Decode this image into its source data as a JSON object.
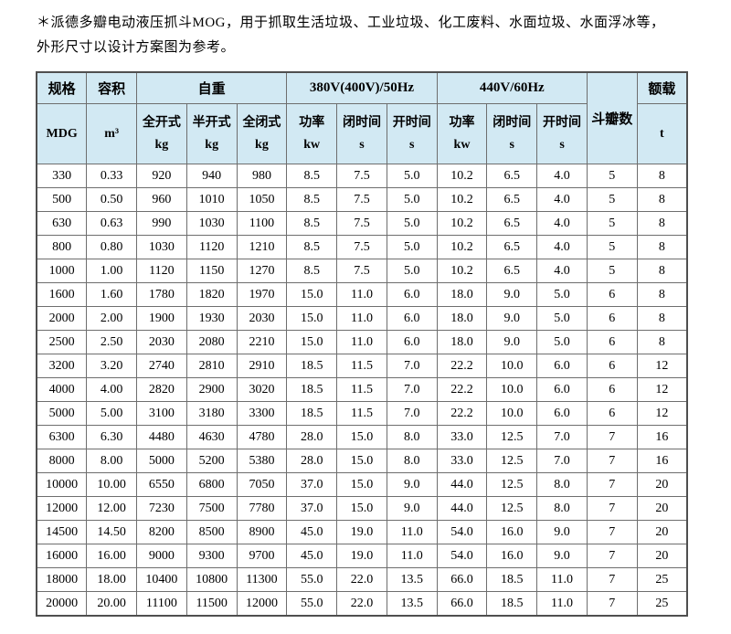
{
  "intro": {
    "line1": "＊派德多瓣电动液压抓斗MOG，用于抓取生活垃圾、工业垃圾、化工废料、水面垃圾、水面浮冰等，",
    "line2": "外形尺寸以设计方案图为参考。"
  },
  "colors": {
    "header_bg": "#d2e9f3",
    "grid_border": "#6e6e6e",
    "outer_border": "#4f4f4f"
  },
  "table": {
    "header_row1": [
      {
        "key": "spec",
        "label": "规格"
      },
      {
        "key": "volume",
        "label": "容积"
      },
      {
        "key": "self-weight",
        "label": "自重"
      },
      {
        "key": "supply-380",
        "label": "380V(400V)/50Hz"
      },
      {
        "key": "supply-440",
        "label": "440V/60Hz"
      },
      {
        "key": "petal-count",
        "label": "斗瓣数"
      },
      {
        "key": "rated-load",
        "label": "额载"
      }
    ],
    "header_row2": [
      {
        "key": "spec-unit",
        "line1": "MDG",
        "line2": ""
      },
      {
        "key": "volume-unit",
        "line1": "m³",
        "line2": ""
      },
      {
        "key": "weight-full-open",
        "line1": "全开式",
        "line2": "kg"
      },
      {
        "key": "weight-half-open",
        "line1": "半开式",
        "line2": "kg"
      },
      {
        "key": "weight-full-closed",
        "line1": "全闭式",
        "line2": "kg"
      },
      {
        "key": "power-380",
        "line1": "功率",
        "line2": "kw"
      },
      {
        "key": "close-time-380",
        "line1": "闭时间",
        "line2": "s"
      },
      {
        "key": "open-time-380",
        "line1": "开时间",
        "line2": "s"
      },
      {
        "key": "power-440",
        "line1": "功率",
        "line2": "kw"
      },
      {
        "key": "close-time-440",
        "line1": "闭时间",
        "line2": "s"
      },
      {
        "key": "open-time-440",
        "line1": "开时间",
        "line2": "s"
      },
      {
        "key": "rated-load-unit",
        "line1": "t",
        "line2": ""
      }
    ],
    "column_keys": [
      "spec",
      "volume",
      "weight-full-open",
      "weight-half-open",
      "weight-full-closed",
      "power-380",
      "close-time-380",
      "open-time-380",
      "power-440",
      "close-time-440",
      "open-time-440",
      "petal-count",
      "rated-load"
    ],
    "rows": [
      [
        "330",
        "0.33",
        "920",
        "940",
        "980",
        "8.5",
        "7.5",
        "5.0",
        "10.2",
        "6.5",
        "4.0",
        "5",
        "8"
      ],
      [
        "500",
        "0.50",
        "960",
        "1010",
        "1050",
        "8.5",
        "7.5",
        "5.0",
        "10.2",
        "6.5",
        "4.0",
        "5",
        "8"
      ],
      [
        "630",
        "0.63",
        "990",
        "1030",
        "1100",
        "8.5",
        "7.5",
        "5.0",
        "10.2",
        "6.5",
        "4.0",
        "5",
        "8"
      ],
      [
        "800",
        "0.80",
        "1030",
        "1120",
        "1210",
        "8.5",
        "7.5",
        "5.0",
        "10.2",
        "6.5",
        "4.0",
        "5",
        "8"
      ],
      [
        "1000",
        "1.00",
        "1120",
        "1150",
        "1270",
        "8.5",
        "7.5",
        "5.0",
        "10.2",
        "6.5",
        "4.0",
        "5",
        "8"
      ],
      [
        "1600",
        "1.60",
        "1780",
        "1820",
        "1970",
        "15.0",
        "11.0",
        "6.0",
        "18.0",
        "9.0",
        "5.0",
        "6",
        "8"
      ],
      [
        "2000",
        "2.00",
        "1900",
        "1930",
        "2030",
        "15.0",
        "11.0",
        "6.0",
        "18.0",
        "9.0",
        "5.0",
        "6",
        "8"
      ],
      [
        "2500",
        "2.50",
        "2030",
        "2080",
        "2210",
        "15.0",
        "11.0",
        "6.0",
        "18.0",
        "9.0",
        "5.0",
        "6",
        "8"
      ],
      [
        "3200",
        "3.20",
        "2740",
        "2810",
        "2910",
        "18.5",
        "11.5",
        "7.0",
        "22.2",
        "10.0",
        "6.0",
        "6",
        "12"
      ],
      [
        "4000",
        "4.00",
        "2820",
        "2900",
        "3020",
        "18.5",
        "11.5",
        "7.0",
        "22.2",
        "10.0",
        "6.0",
        "6",
        "12"
      ],
      [
        "5000",
        "5.00",
        "3100",
        "3180",
        "3300",
        "18.5",
        "11.5",
        "7.0",
        "22.2",
        "10.0",
        "6.0",
        "6",
        "12"
      ],
      [
        "6300",
        "6.30",
        "4480",
        "4630",
        "4780",
        "28.0",
        "15.0",
        "8.0",
        "33.0",
        "12.5",
        "7.0",
        "7",
        "16"
      ],
      [
        "8000",
        "8.00",
        "5000",
        "5200",
        "5380",
        "28.0",
        "15.0",
        "8.0",
        "33.0",
        "12.5",
        "7.0",
        "7",
        "16"
      ],
      [
        "10000",
        "10.00",
        "6550",
        "6800",
        "7050",
        "37.0",
        "15.0",
        "9.0",
        "44.0",
        "12.5",
        "8.0",
        "7",
        "20"
      ],
      [
        "12000",
        "12.00",
        "7230",
        "7500",
        "7780",
        "37.0",
        "15.0",
        "9.0",
        "44.0",
        "12.5",
        "8.0",
        "7",
        "20"
      ],
      [
        "14500",
        "14.50",
        "8200",
        "8500",
        "8900",
        "45.0",
        "19.0",
        "11.0",
        "54.0",
        "16.0",
        "9.0",
        "7",
        "20"
      ],
      [
        "16000",
        "16.00",
        "9000",
        "9300",
        "9700",
        "45.0",
        "19.0",
        "11.0",
        "54.0",
        "16.0",
        "9.0",
        "7",
        "20"
      ],
      [
        "18000",
        "18.00",
        "10400",
        "10800",
        "11300",
        "55.0",
        "22.0",
        "13.5",
        "66.0",
        "18.5",
        "11.0",
        "7",
        "25"
      ],
      [
        "20000",
        "20.00",
        "11100",
        "11500",
        "12000",
        "55.0",
        "22.0",
        "13.5",
        "66.0",
        "18.5",
        "11.0",
        "7",
        "25"
      ]
    ]
  }
}
